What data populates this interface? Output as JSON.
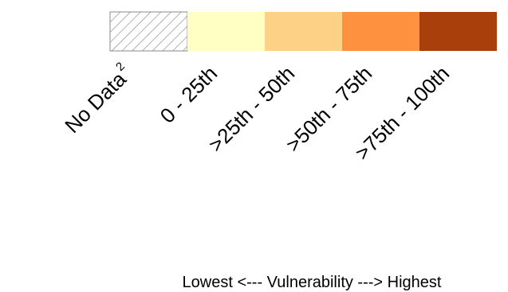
{
  "legend": {
    "items": [
      {
        "label": "No Data",
        "footnote": "2",
        "color": "none",
        "pattern": "hatch"
      },
      {
        "label": "0 - 25th",
        "color": "#ffffc4"
      },
      {
        "label": ">25th - 50th",
        "color": "#fed286"
      },
      {
        "label": ">50th - 75th",
        "color": "#fd9140"
      },
      {
        "label": ">75th - 100th",
        "color": "#a93f0a"
      }
    ],
    "hatch_color": "#888888",
    "caption": "Lowest <--- Vulnerability ---> Highest"
  }
}
